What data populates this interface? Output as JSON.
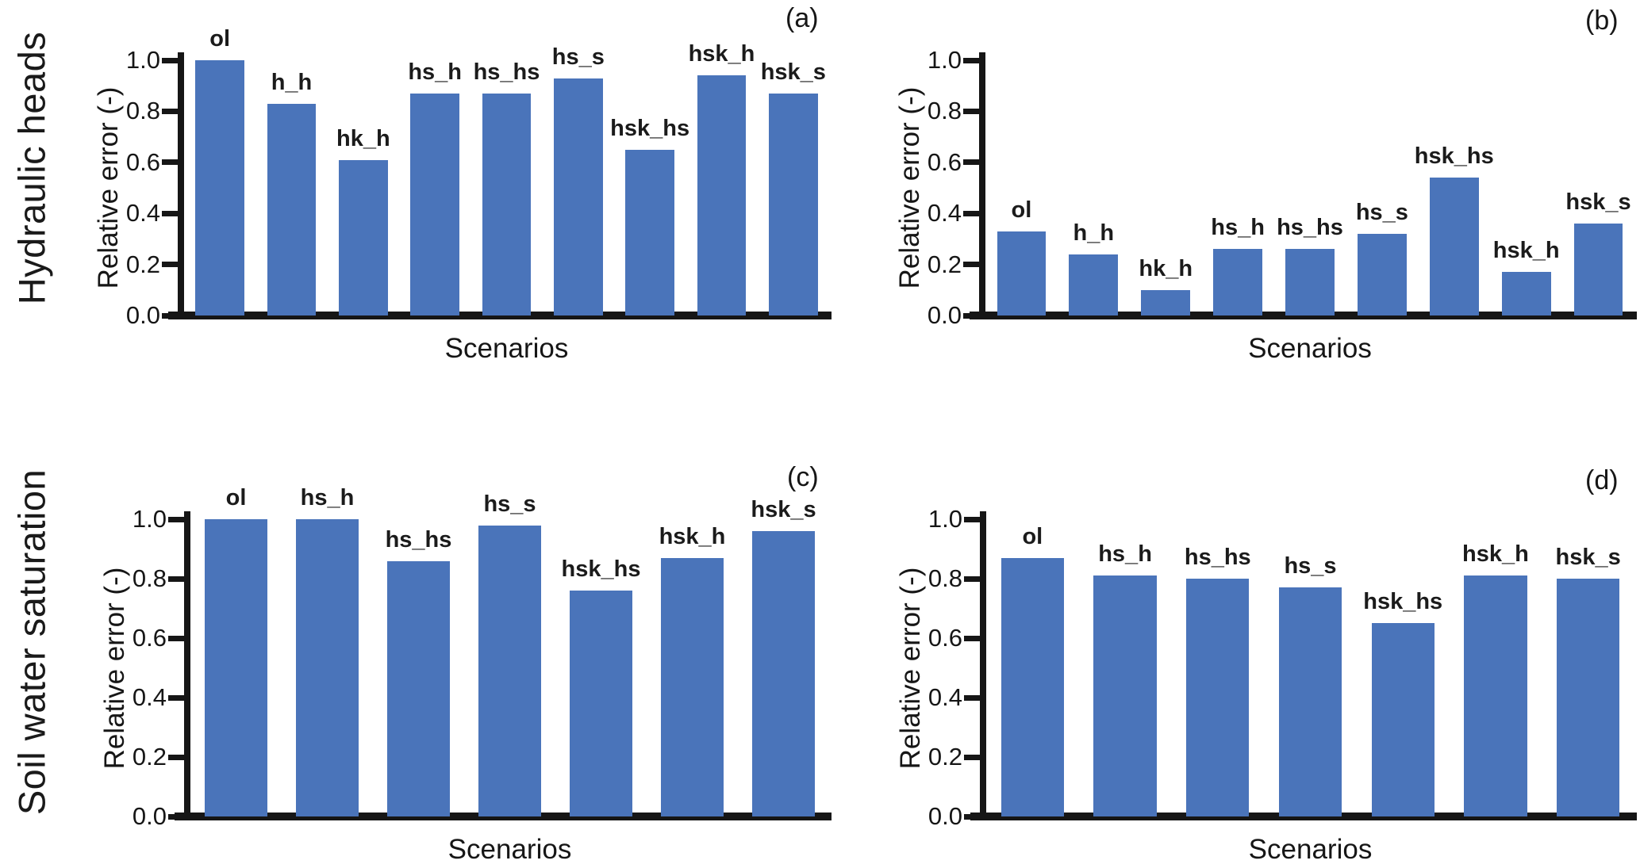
{
  "figure": {
    "background": "#ffffff",
    "bar_color": "#4a74ba",
    "axis_color": "#161616",
    "text_color": "#141414",
    "row_labels": [
      "Hydraulic heads",
      "Soil water saturation"
    ],
    "ytick_values": [
      0.0,
      0.2,
      0.4,
      0.6,
      0.8,
      1.0
    ],
    "ytick_labels": [
      "0.0",
      "0.2",
      "0.4",
      "0.6",
      "0.8",
      "1.0"
    ]
  },
  "chart_data": [
    {
      "type": "bar",
      "panel": "(a)",
      "row_label": "Hydraulic heads",
      "xlabel": "Scenarios",
      "ylabel": "Relative error (-)",
      "ylim": [
        0,
        1.0
      ],
      "grid": false,
      "legend": "none",
      "categories": [
        "ol",
        "h_h",
        "hk_h",
        "hs_h",
        "hs_hs",
        "hs_s",
        "hsk_hs",
        "hsk_h",
        "hsk_s"
      ],
      "values": [
        1.0,
        0.83,
        0.61,
        0.87,
        0.87,
        0.93,
        0.65,
        0.94,
        0.87
      ]
    },
    {
      "type": "bar",
      "panel": "(b)",
      "row_label": "Hydraulic heads",
      "xlabel": "Scenarios",
      "ylabel": "Relative error (-)",
      "ylim": [
        0,
        1.0
      ],
      "grid": false,
      "legend": "none",
      "categories": [
        "ol",
        "h_h",
        "hk_h",
        "hs_h",
        "hs_hs",
        "hs_s",
        "hsk_hs",
        "hsk_h",
        "hsk_s"
      ],
      "values": [
        0.33,
        0.24,
        0.1,
        0.26,
        0.26,
        0.32,
        0.54,
        0.17,
        0.36
      ]
    },
    {
      "type": "bar",
      "panel": "(c)",
      "row_label": "Soil water saturation",
      "xlabel": "Scenarios",
      "ylabel": "Relative error (-)",
      "ylim": [
        0,
        1.0
      ],
      "grid": false,
      "legend": "none",
      "categories": [
        "ol",
        "hs_h",
        "hs_hs",
        "hs_s",
        "hsk_hs",
        "hsk_h",
        "hsk_s"
      ],
      "values": [
        1.0,
        1.0,
        0.86,
        0.98,
        0.76,
        0.87,
        0.96
      ]
    },
    {
      "type": "bar",
      "panel": "(d)",
      "row_label": "Soil water saturation",
      "xlabel": "Scenarios",
      "ylabel": "Relative error (-)",
      "ylim": [
        0,
        1.0
      ],
      "grid": false,
      "legend": "none",
      "categories": [
        "ol",
        "hs_h",
        "hs_hs",
        "hs_s",
        "hsk_hs",
        "hsk_h",
        "hsk_s"
      ],
      "values": [
        0.87,
        0.81,
        0.8,
        0.77,
        0.65,
        0.81,
        0.8
      ]
    }
  ]
}
